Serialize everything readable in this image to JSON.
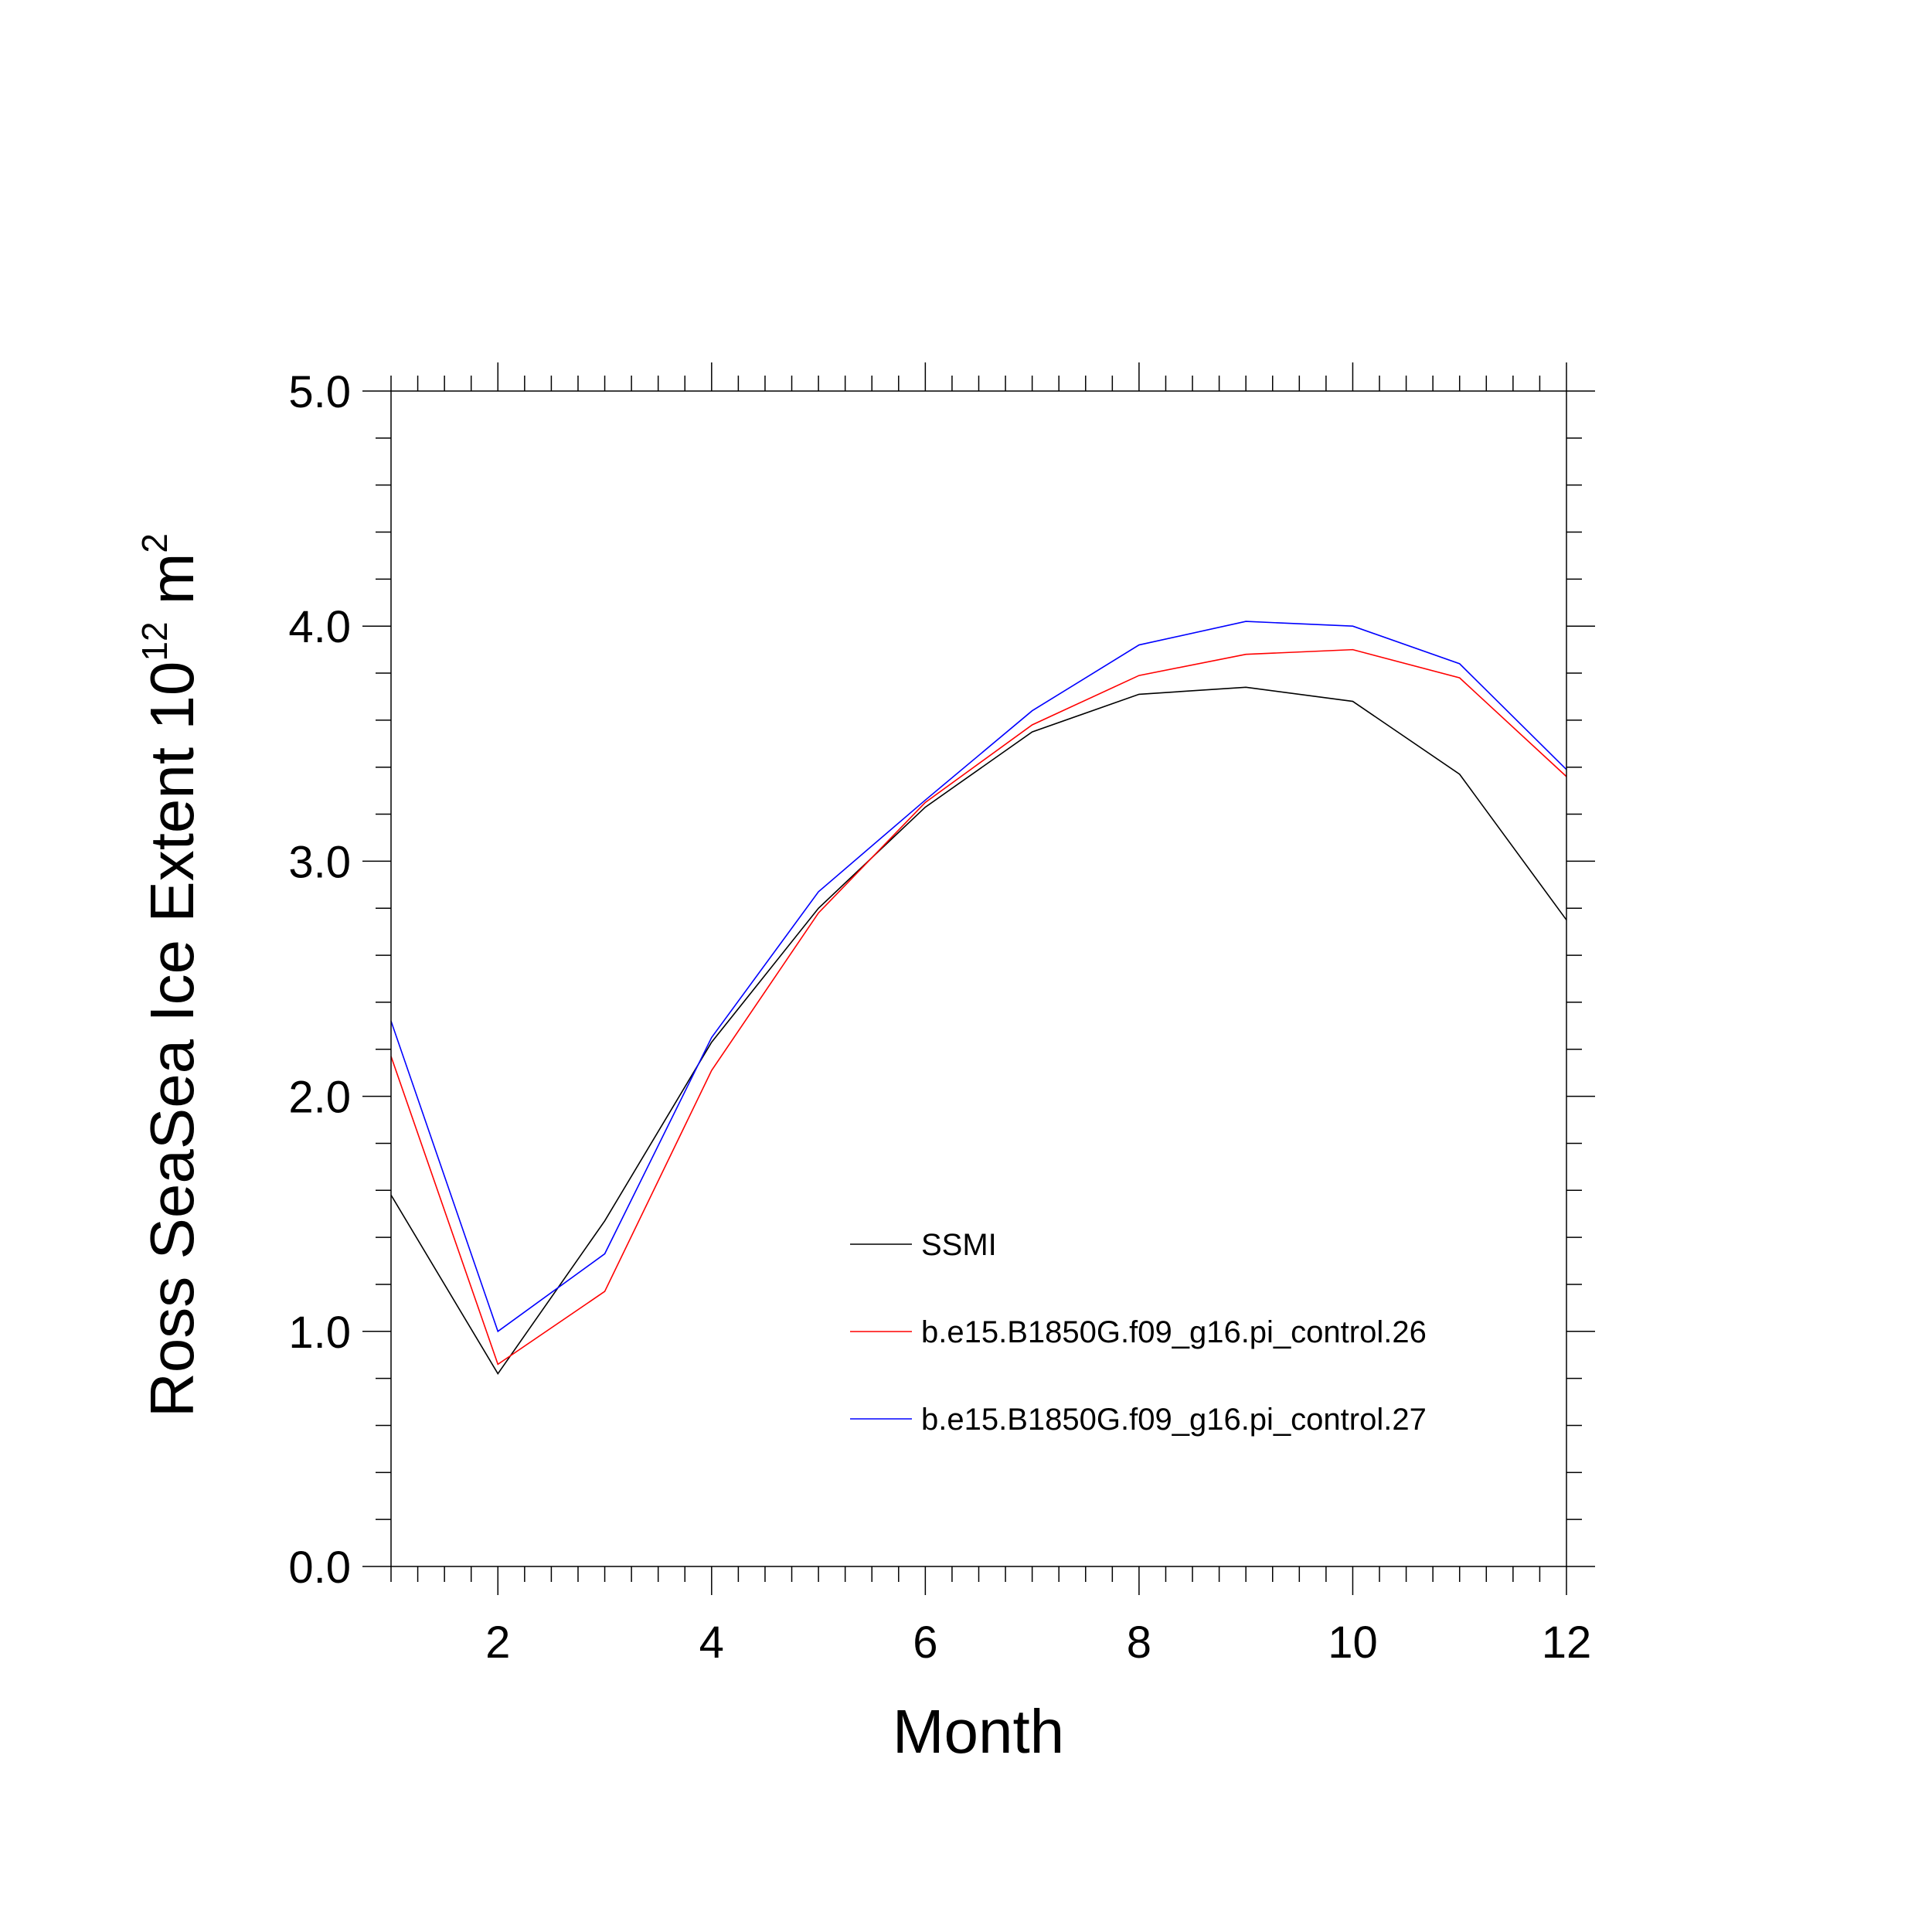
{
  "chart_data": {
    "type": "line",
    "xlabel": "Month",
    "ylabel": "Ross SeaSea Ice Extent 10",
    "ylabel_sup1": "12",
    "ylabel_mid": " m",
    "ylabel_sup2": "2",
    "xlim": [
      1,
      12
    ],
    "ylim": [
      0,
      5
    ],
    "xticks": [
      2,
      4,
      6,
      8,
      10,
      12
    ],
    "xtick_labels": [
      "2",
      "4",
      "6",
      "8",
      "10",
      "12"
    ],
    "yticks": [
      0,
      1,
      2,
      3,
      4,
      5
    ],
    "ytick_labels": [
      "0.0",
      "1.0",
      "2.0",
      "3.0",
      "4.0",
      "5.0"
    ],
    "grid": false,
    "legend_position": "lower-right",
    "x": [
      1,
      2,
      3,
      4,
      5,
      6,
      7,
      8,
      9,
      10,
      11,
      12
    ],
    "series": [
      {
        "name": "SSMI",
        "color": "#000000",
        "values": [
          1.58,
          0.82,
          1.47,
          2.23,
          2.8,
          3.23,
          3.55,
          3.71,
          3.74,
          3.68,
          3.37,
          2.75
        ]
      },
      {
        "name": "b.e15.B1850G.f09_g16.pi_control.26",
        "color": "#ff0000",
        "values": [
          2.17,
          0.86,
          1.17,
          2.11,
          2.78,
          3.25,
          3.58,
          3.79,
          3.88,
          3.9,
          3.78,
          3.36
        ]
      },
      {
        "name": "b.e15.B1850G.f09_g16.pi_control.27",
        "color": "#0000ff",
        "values": [
          2.32,
          1.0,
          1.33,
          2.25,
          2.87,
          3.26,
          3.64,
          3.92,
          4.02,
          4.0,
          3.84,
          3.39
        ]
      }
    ]
  }
}
